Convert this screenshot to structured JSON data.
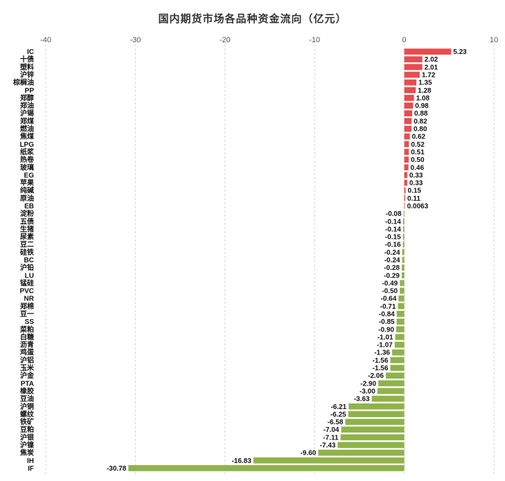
{
  "chart_data": {
    "type": "bar",
    "orientation": "horizontal",
    "title": "国内期货市场各品种资金流向（亿元）",
    "xlim": [
      -40,
      10
    ],
    "xticks": [
      -40,
      -30,
      -20,
      -10,
      0,
      10
    ],
    "grid": true,
    "colors": {
      "positive": "#e84c4f",
      "negative": "#8fb34a"
    },
    "categories": [
      "IC",
      "十债",
      "塑料",
      "沪锌",
      "棕榈油",
      "PP",
      "郑醇",
      "郑油",
      "沪锡",
      "郑煤",
      "燃油",
      "焦煤",
      "LPG",
      "纸浆",
      "热卷",
      "玻璃",
      "EG",
      "苹果",
      "纯碱",
      "原油",
      "EB",
      "淀粉",
      "五债",
      "生猪",
      "尿素",
      "豆二",
      "硅铁",
      "BC",
      "沪铅",
      "LU",
      "锰硅",
      "PVC",
      "NR",
      "郑棉",
      "豆一",
      "SS",
      "菜粕",
      "白糖",
      "沥青",
      "鸡蛋",
      "沪铝",
      "玉米",
      "沪金",
      "PTA",
      "橡胶",
      "豆油",
      "沪铜",
      "螺纹",
      "铁矿",
      "豆粕",
      "沪银",
      "沪镍",
      "焦炭",
      "IH",
      "IF"
    ],
    "values": [
      5.23,
      2.02,
      2.01,
      1.72,
      1.35,
      1.28,
      1.08,
      0.98,
      0.88,
      0.82,
      0.8,
      0.62,
      0.52,
      0.51,
      0.5,
      0.46,
      0.33,
      0.33,
      0.15,
      0.11,
      0.0063,
      -0.08,
      -0.14,
      -0.14,
      -0.15,
      -0.16,
      -0.24,
      -0.24,
      -0.28,
      -0.29,
      -0.49,
      -0.5,
      -0.64,
      -0.71,
      -0.84,
      -0.85,
      -0.9,
      -1.01,
      -1.07,
      -1.36,
      -1.56,
      -1.56,
      -2.06,
      -2.9,
      -3.0,
      -3.63,
      -6.21,
      -6.25,
      -6.58,
      -7.04,
      -7.11,
      -7.43,
      -9.6,
      -16.83,
      -30.78
    ],
    "value_labels": [
      "5.23",
      "2.02",
      "2.01",
      "1.72",
      "1.35",
      "1.28",
      "1.08",
      "0.98",
      "0.88",
      "0.82",
      "0.80",
      "0.62",
      "0.52",
      "0.51",
      "0.50",
      "0.46",
      "0.33",
      "0.33",
      "0.15",
      "0.11",
      "0.0063",
      "-0.08",
      "-0.14",
      "-0.14",
      "-0.15",
      "-0.16",
      "-0.24",
      "-0.24",
      "-0.28",
      "-0.29",
      "-0.49",
      "-0.50",
      "-0.64",
      "-0.71",
      "-0.84",
      "-0.85",
      "-0.90",
      "-1.01",
      "-1.07",
      "-1.36",
      "-1.56",
      "-1.56",
      "-2.06",
      "-2.90",
      "-3.00",
      "-3.63",
      "-6.21",
      "-6.25",
      "-6.58",
      "-7.04",
      "-7.11",
      "-7.43",
      "-9.60",
      "-16.83",
      "-30.78"
    ]
  }
}
